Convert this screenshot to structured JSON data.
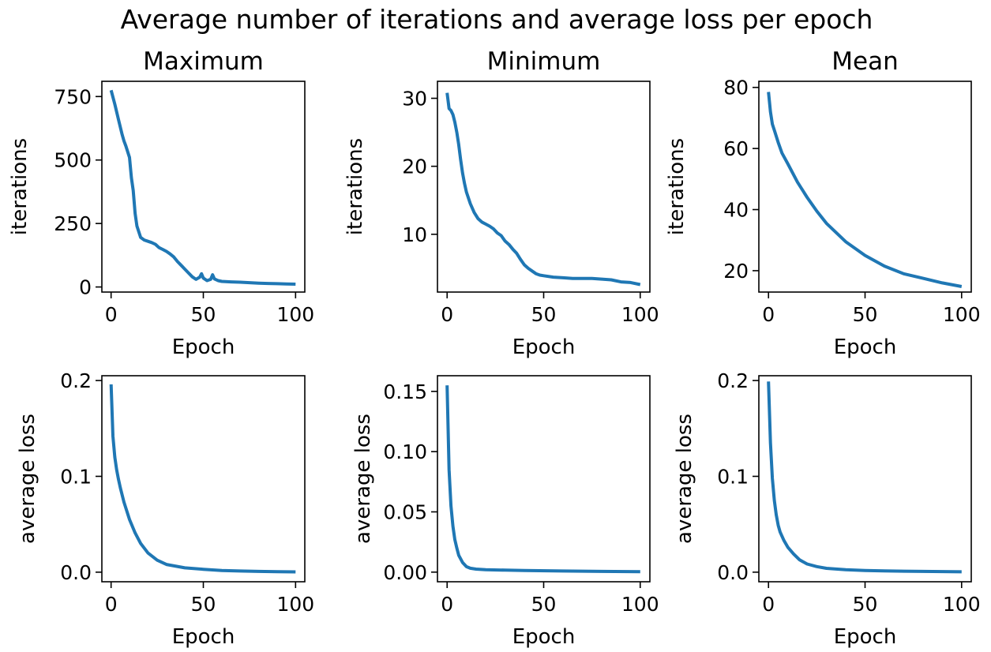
{
  "figure": {
    "title": "Average number of iterations and average loss per epoch"
  },
  "colors": {
    "series": "#1f77b4",
    "axis": "#000000"
  },
  "chart_data": [
    {
      "type": "line",
      "title": "Maximum",
      "xlabel": "Epoch",
      "ylabel": "iterations",
      "xlim": [
        -5,
        105
      ],
      "ylim": [
        -20,
        810
      ],
      "xticks": [
        0,
        50,
        100
      ],
      "yticks": [
        0,
        250,
        500,
        750
      ],
      "ytick_labels": [
        "0",
        "250",
        "500",
        "750"
      ],
      "series": [
        {
          "x": [
            0,
            2,
            4,
            6,
            7,
            8,
            10,
            11,
            12,
            13,
            14,
            16,
            18,
            20,
            22,
            24,
            26,
            28,
            30,
            32,
            34,
            36,
            38,
            40,
            42,
            44,
            46,
            48,
            49,
            50,
            52,
            54,
            55,
            56,
            58,
            60,
            65,
            70,
            75,
            80,
            85,
            90,
            95,
            100
          ],
          "values": [
            775,
            720,
            660,
            600,
            575,
            555,
            510,
            430,
            380,
            290,
            240,
            195,
            185,
            180,
            175,
            168,
            155,
            148,
            140,
            130,
            118,
            100,
            85,
            70,
            55,
            40,
            30,
            38,
            52,
            35,
            25,
            30,
            48,
            32,
            25,
            22,
            20,
            19,
            17,
            15,
            14,
            13,
            12,
            11
          ]
        }
      ]
    },
    {
      "type": "line",
      "title": "Minimum",
      "xlabel": "Epoch",
      "ylabel": "iterations",
      "xlim": [
        -5,
        105
      ],
      "ylim": [
        1.5,
        32.5
      ],
      "xticks": [
        0,
        50,
        100
      ],
      "yticks": [
        10,
        20,
        30
      ],
      "ytick_labels": [
        "10",
        "20",
        "30"
      ],
      "series": [
        {
          "x": [
            0,
            1,
            2,
            3,
            4,
            5,
            6,
            7,
            8,
            9,
            10,
            12,
            14,
            16,
            18,
            20,
            22,
            24,
            26,
            28,
            30,
            32,
            34,
            36,
            38,
            40,
            42,
            44,
            46,
            48,
            50,
            55,
            60,
            65,
            70,
            75,
            80,
            85,
            90,
            95,
            100
          ],
          "values": [
            30.8,
            28.5,
            28.2,
            27.6,
            26.5,
            25,
            23.2,
            21,
            19,
            17.5,
            16.2,
            14.5,
            13.2,
            12.3,
            11.8,
            11.5,
            11.2,
            10.8,
            10.2,
            9.8,
            9,
            8.5,
            7.8,
            7.2,
            6.3,
            5.5,
            5,
            4.6,
            4.2,
            4.0,
            3.9,
            3.7,
            3.6,
            3.5,
            3.5,
            3.5,
            3.4,
            3.3,
            3.0,
            2.9,
            2.6
          ]
        }
      ]
    },
    {
      "type": "line",
      "title": "Mean",
      "xlabel": "Epoch",
      "ylabel": "iterations",
      "xlim": [
        -5,
        105
      ],
      "ylim": [
        13,
        82
      ],
      "xticks": [
        0,
        50,
        100
      ],
      "yticks": [
        20,
        40,
        60,
        80
      ],
      "ytick_labels": [
        "20",
        "40",
        "60",
        "80"
      ],
      "series": [
        {
          "x": [
            0,
            1,
            2,
            3,
            5,
            7,
            10,
            15,
            20,
            25,
            30,
            40,
            50,
            60,
            70,
            80,
            90,
            100
          ],
          "values": [
            78.5,
            72,
            68,
            66,
            62,
            58.5,
            55,
            49,
            44,
            39.5,
            35.5,
            29.5,
            25,
            21.5,
            19,
            17.5,
            16,
            14.8
          ]
        }
      ]
    },
    {
      "type": "line",
      "title": "",
      "xlabel": "Epoch",
      "ylabel": "average loss",
      "xlim": [
        -5,
        105
      ],
      "ylim": [
        -0.01,
        0.205
      ],
      "xticks": [
        0,
        50,
        100
      ],
      "yticks": [
        0,
        0.1,
        0.2
      ],
      "ytick_labels": [
        "0.0",
        "0.1",
        "0.2"
      ],
      "series": [
        {
          "x": [
            0,
            1,
            2,
            3,
            4,
            5,
            7,
            10,
            13,
            16,
            20,
            25,
            30,
            40,
            50,
            60,
            70,
            80,
            90,
            100
          ],
          "values": [
            0.196,
            0.142,
            0.12,
            0.107,
            0.097,
            0.088,
            0.073,
            0.055,
            0.041,
            0.03,
            0.02,
            0.0125,
            0.008,
            0.0045,
            0.003,
            0.0018,
            0.0012,
            0.0008,
            0.0005,
            0.0003
          ]
        }
      ]
    },
    {
      "type": "line",
      "title": "",
      "xlabel": "Epoch",
      "ylabel": "average loss",
      "xlim": [
        -5,
        105
      ],
      "ylim": [
        -0.008,
        0.163
      ],
      "xticks": [
        0,
        50,
        100
      ],
      "yticks": [
        0,
        0.05,
        0.1,
        0.15
      ],
      "ytick_labels": [
        "0.00",
        "0.05",
        "0.10",
        "0.15"
      ],
      "series": [
        {
          "x": [
            0,
            1,
            2,
            3,
            4,
            5,
            6,
            8,
            10,
            12,
            15,
            20,
            30,
            40,
            60,
            80,
            100
          ],
          "values": [
            0.155,
            0.085,
            0.055,
            0.038,
            0.027,
            0.02,
            0.014,
            0.008,
            0.0045,
            0.0032,
            0.0025,
            0.002,
            0.0016,
            0.0013,
            0.0009,
            0.0006,
            0.0003
          ]
        }
      ]
    },
    {
      "type": "line",
      "title": "",
      "xlabel": "Epoch",
      "ylabel": "average loss",
      "xlim": [
        -5,
        105
      ],
      "ylim": [
        -0.01,
        0.205
      ],
      "xticks": [
        0,
        50,
        100
      ],
      "yticks": [
        0,
        0.1,
        0.2
      ],
      "ytick_labels": [
        "0.0",
        "0.1",
        "0.2"
      ],
      "series": [
        {
          "x": [
            0,
            1,
            2,
            3,
            4,
            5,
            6,
            8,
            10,
            13,
            16,
            20,
            25,
            30,
            40,
            50,
            60,
            80,
            100
          ],
          "values": [
            0.199,
            0.135,
            0.098,
            0.075,
            0.06,
            0.049,
            0.042,
            0.033,
            0.026,
            0.019,
            0.013,
            0.0085,
            0.0058,
            0.004,
            0.0025,
            0.0018,
            0.0013,
            0.0008,
            0.0004
          ]
        }
      ]
    }
  ]
}
